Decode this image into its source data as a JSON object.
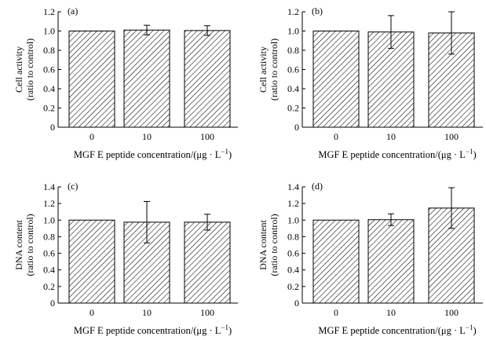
{
  "chart_data": [
    {
      "type": "bar",
      "panel_label": "(a)",
      "categories": [
        "0",
        "10",
        "100"
      ],
      "values": [
        1.0,
        1.01,
        1.005
      ],
      "errors": [
        0,
        0.05,
        0.05
      ],
      "ylim": [
        0,
        1.2
      ],
      "yticks": [
        "0",
        "0.2",
        "0.4",
        "0.6",
        "0.8",
        "1.0",
        "1.2"
      ],
      "ylabel_line1": "Cell activity",
      "ylabel_line2": "(ratio to control)",
      "xlabel": "MGF E peptide concentration/(μg · L",
      "xlabel_sup": "−1",
      "xlabel_end": ")",
      "bar_pattern": "diagonal-hatch",
      "grid": false
    },
    {
      "type": "bar",
      "panel_label": "(b)",
      "categories": [
        "0",
        "10",
        "100"
      ],
      "values": [
        1.0,
        0.99,
        0.98
      ],
      "errors": [
        0,
        0.17,
        0.22
      ],
      "ylim": [
        0,
        1.2
      ],
      "yticks": [
        "0",
        "0.2",
        "0.4",
        "0.6",
        "0.8",
        "1.0",
        "1.2"
      ],
      "ylabel_line1": "Cell activity",
      "ylabel_line2": "(ratio to control)",
      "xlabel": "MGF E peptide concentration/(μg · L",
      "xlabel_sup": "−1",
      "xlabel_end": ")",
      "bar_pattern": "diagonal-hatch",
      "grid": false
    },
    {
      "type": "bar",
      "panel_label": "(c)",
      "categories": [
        "0",
        "10",
        "100"
      ],
      "values": [
        1.0,
        0.975,
        0.975
      ],
      "errors": [
        0,
        0.25,
        0.095
      ],
      "ylim": [
        0,
        1.4
      ],
      "yticks": [
        "0",
        "0.2",
        "0.4",
        "0.6",
        "0.8",
        "1.0",
        "1.2",
        "1.4"
      ],
      "ylabel_line1": "DNA content",
      "ylabel_line2": "(ratio to control)",
      "xlabel": "MGF E peptide concentration/(μg · L",
      "xlabel_sup": "−1",
      "xlabel_end": ")",
      "bar_pattern": "diagonal-hatch",
      "grid": false
    },
    {
      "type": "bar",
      "panel_label": "(d)",
      "categories": [
        "0",
        "10",
        "100"
      ],
      "values": [
        1.0,
        1.005,
        1.145
      ],
      "errors": [
        0,
        0.07,
        0.245
      ],
      "ylim": [
        0,
        1.4
      ],
      "yticks": [
        "0",
        "0.2",
        "0.4",
        "0.6",
        "0.8",
        "1.0",
        "1.2",
        "1.4"
      ],
      "ylabel_line1": "DNA content",
      "ylabel_line2": "(ratio to control)",
      "xlabel": "MGF E peptide concentration/(μg · L",
      "xlabel_sup": "−1",
      "xlabel_end": ")",
      "bar_pattern": "diagonal-hatch",
      "grid": false
    }
  ]
}
